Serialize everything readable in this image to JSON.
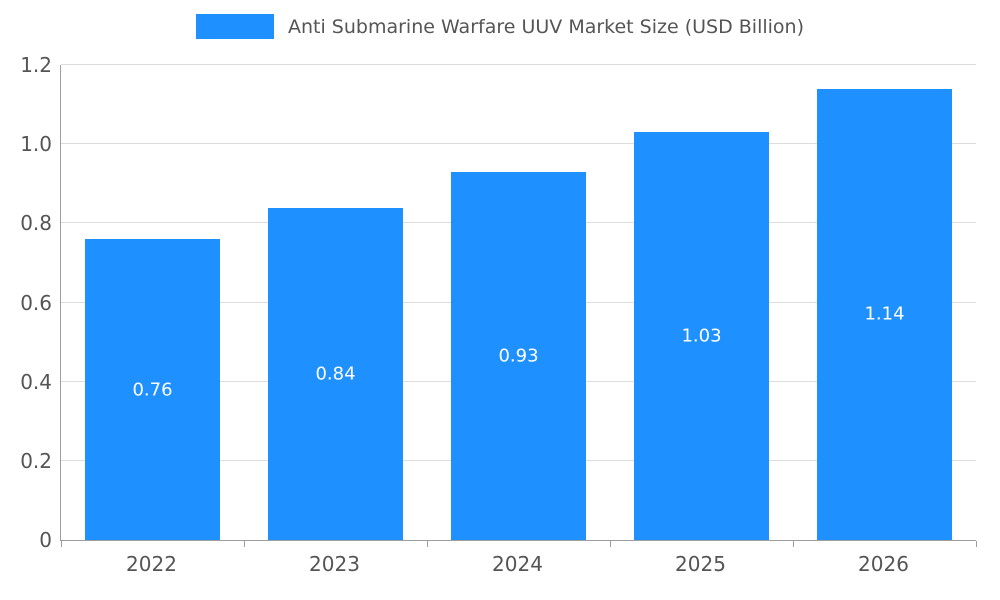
{
  "chart_data": {
    "type": "bar",
    "title": "Anti Submarine Warfare UUV Market Size (USD Billion)",
    "categories": [
      "2022",
      "2023",
      "2024",
      "2025",
      "2026"
    ],
    "values": [
      0.76,
      0.84,
      0.93,
      1.03,
      1.14
    ],
    "value_labels": [
      "0.76",
      "0.84",
      "0.93",
      "1.03",
      "1.14"
    ],
    "xlabel": "",
    "ylabel": "",
    "ylim": [
      0,
      1.2
    ],
    "yticks": [
      0,
      0.2,
      0.4,
      0.6,
      0.8,
      1.0,
      1.2
    ],
    "ytick_labels": [
      "0",
      "0.2",
      "0.4",
      "0.6",
      "0.8",
      "1.0",
      "1.2"
    ],
    "grid": true,
    "legend_position": "top-center",
    "bar_color": "#1E90FF",
    "value_label_color": "#ffffff",
    "axis_color": "#9e9e9e",
    "grid_color": "#dddddd",
    "text_color": "#555555"
  },
  "legend": {
    "label": "Anti Submarine Warfare UUV Market Size (USD Billion)"
  }
}
